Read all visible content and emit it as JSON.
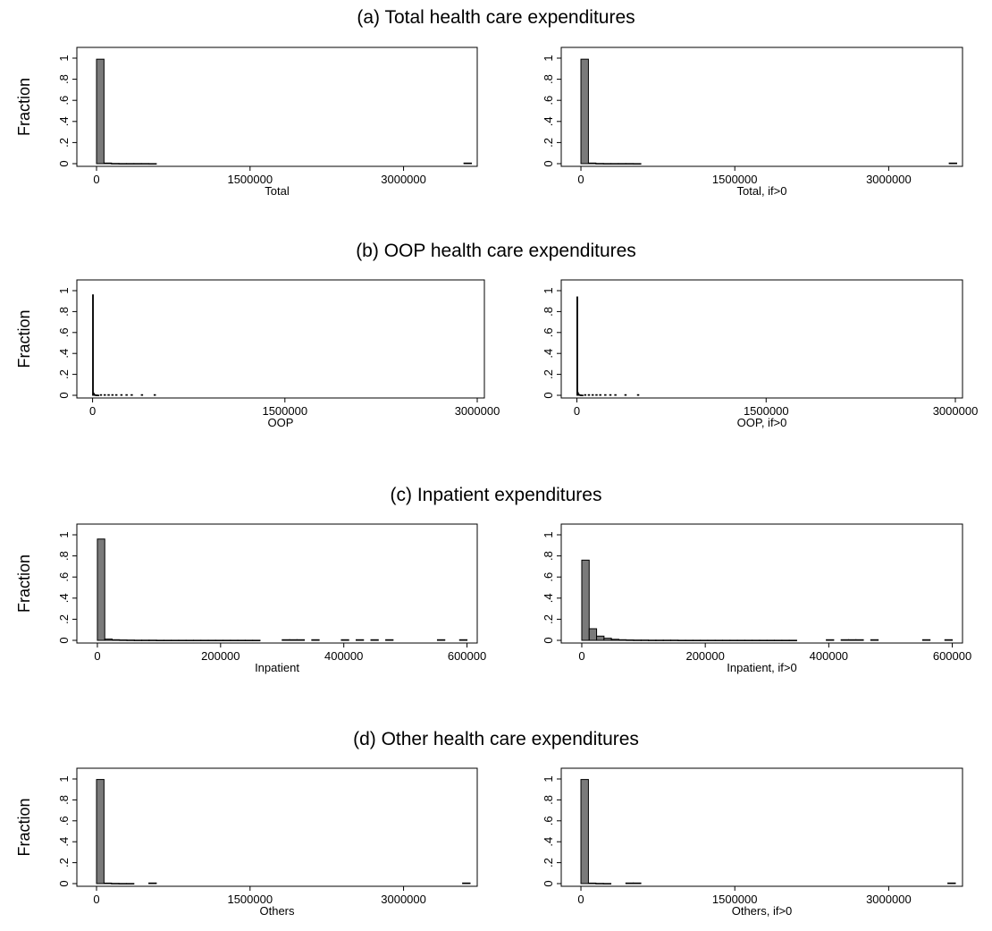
{
  "chart_data": [
    {
      "type": "bar",
      "title": "(a) Total health care expenditures",
      "ylabel": "Fraction",
      "ylim": [
        0,
        1
      ],
      "yticks": [
        "0",
        ".2",
        ".4",
        ".6",
        ".8",
        "1"
      ],
      "panels": [
        {
          "xlabel": "Total",
          "xticks": [
            "0",
            "1500000",
            "3000000"
          ],
          "xtick_values": [
            0,
            1500000,
            3000000
          ],
          "xlim": [
            -70000,
            3650000
          ],
          "bin_width": 73000,
          "values": [
            0.99,
            0.006,
            0.002,
            0.001,
            0.001,
            0.001,
            0.001,
            0.0005
          ],
          "outlier_bins": [
            3590000
          ]
        },
        {
          "xlabel": "Total, if>0",
          "xticks": [
            "0",
            "1500000",
            "3000000"
          ],
          "xtick_values": [
            0,
            1500000,
            3000000
          ],
          "xlim": [
            -70000,
            3650000
          ],
          "bin_width": 73000,
          "values": [
            0.99,
            0.006,
            0.002,
            0.001,
            0.001,
            0.001,
            0.001,
            0.0005
          ],
          "outlier_bins": [
            3590000
          ]
        }
      ]
    },
    {
      "type": "bar",
      "title": "(b) OOP health care expenditures",
      "ylabel": "Fraction",
      "ylim": [
        0,
        1
      ],
      "yticks": [
        "0",
        ".2",
        ".4",
        ".6",
        ".8",
        "1"
      ],
      "panels": [
        {
          "xlabel": "OOP",
          "xticks": [
            "0",
            "1500000",
            "3000000"
          ],
          "xtick_values": [
            0,
            1500000,
            3000000
          ],
          "xlim": [
            -25000,
            3000000
          ],
          "bin_width": 6000,
          "values": [
            0.96,
            0.02,
            0.008,
            0.004,
            0.003,
            0.002,
            0.002,
            0.001
          ],
          "sparse_bins": [
            60000,
            90000,
            120000,
            150000,
            180000,
            220000,
            260000,
            300000,
            380000,
            480000
          ]
        },
        {
          "xlabel": "OOP, if>0",
          "xticks": [
            "0",
            "1500000",
            "3000000"
          ],
          "xtick_values": [
            0,
            1500000,
            3000000
          ],
          "xlim": [
            -25000,
            3000000
          ],
          "bin_width": 6000,
          "values": [
            0.94,
            0.025,
            0.01,
            0.005,
            0.003,
            0.002,
            0.002,
            0.001
          ],
          "sparse_bins": [
            60000,
            90000,
            120000,
            150000,
            180000,
            220000,
            260000,
            300000,
            380000,
            480000
          ]
        }
      ]
    },
    {
      "type": "bar",
      "title": "(c) Inpatient expenditures",
      "ylabel": "Fraction",
      "ylim": [
        0,
        1
      ],
      "yticks": [
        "0",
        ".2",
        ".4",
        ".6",
        ".8",
        "1"
      ],
      "panels": [
        {
          "xlabel": "Inpatient",
          "xticks": [
            "0",
            "200000",
            "400000",
            "600000"
          ],
          "xtick_values": [
            0,
            200000,
            400000,
            600000
          ],
          "xlim": [
            -13000,
            605000
          ],
          "bin_width": 12000,
          "values": [
            0.96,
            0.012,
            0.006,
            0.004,
            0.003,
            0.002,
            0.002,
            0.002,
            0.001,
            0.001,
            0.001,
            0.001,
            0.001,
            0.001,
            0.001,
            0.001,
            0.001,
            0.001,
            0.001,
            0.001,
            0.001,
            0.001
          ],
          "outlier_bins": [
            300000,
            312000,
            324000,
            348000,
            396000,
            420000,
            444000,
            468000,
            552000,
            588000
          ]
        },
        {
          "xlabel": "Inpatient, if>0",
          "xticks": [
            "0",
            "200000",
            "400000",
            "600000"
          ],
          "xtick_values": [
            0,
            200000,
            400000,
            600000
          ],
          "xlim": [
            -13000,
            605000
          ],
          "bin_width": 12000,
          "values": [
            0.76,
            0.11,
            0.04,
            0.02,
            0.01,
            0.006,
            0.004,
            0.003,
            0.003,
            0.002,
            0.002,
            0.002,
            0.002,
            0.001,
            0.001,
            0.001,
            0.001,
            0.001,
            0.001,
            0.001,
            0.001,
            0.001,
            0.001,
            0.001,
            0.001,
            0.001,
            0.001,
            0.001,
            0.001
          ],
          "outlier_bins": [
            396000,
            420000,
            432000,
            444000,
            468000,
            552000,
            588000
          ]
        }
      ]
    },
    {
      "type": "bar",
      "title": "(d) Other health care expenditures",
      "ylabel": "Fraction",
      "ylim": [
        0,
        1
      ],
      "yticks": [
        "0",
        ".2",
        ".4",
        ".6",
        ".8",
        "1"
      ],
      "panels": [
        {
          "xlabel": "Others",
          "xticks": [
            "0",
            "1500000",
            "3000000"
          ],
          "xtick_values": [
            0,
            1500000,
            3000000
          ],
          "xlim": [
            -70000,
            3650000
          ],
          "bin_width": 73000,
          "values": [
            0.995,
            0.005,
            0.002,
            0.001,
            0.001
          ],
          "outlier_bins": [
            511000,
            3577000
          ]
        },
        {
          "xlabel": "Others, if>0",
          "xticks": [
            "0",
            "1500000",
            "3000000"
          ],
          "xtick_values": [
            0,
            1500000,
            3000000
          ],
          "xlim": [
            -70000,
            3650000
          ],
          "bin_width": 73000,
          "values": [
            0.995,
            0.005,
            0.002,
            0.001
          ],
          "outlier_bins": [
            438000,
            511000,
            3577000
          ]
        }
      ]
    }
  ],
  "style": {
    "bar_fill": "#7a7a7a",
    "bar_stroke": "#000000",
    "axis_color": "#000000",
    "background": "#ffffff"
  }
}
